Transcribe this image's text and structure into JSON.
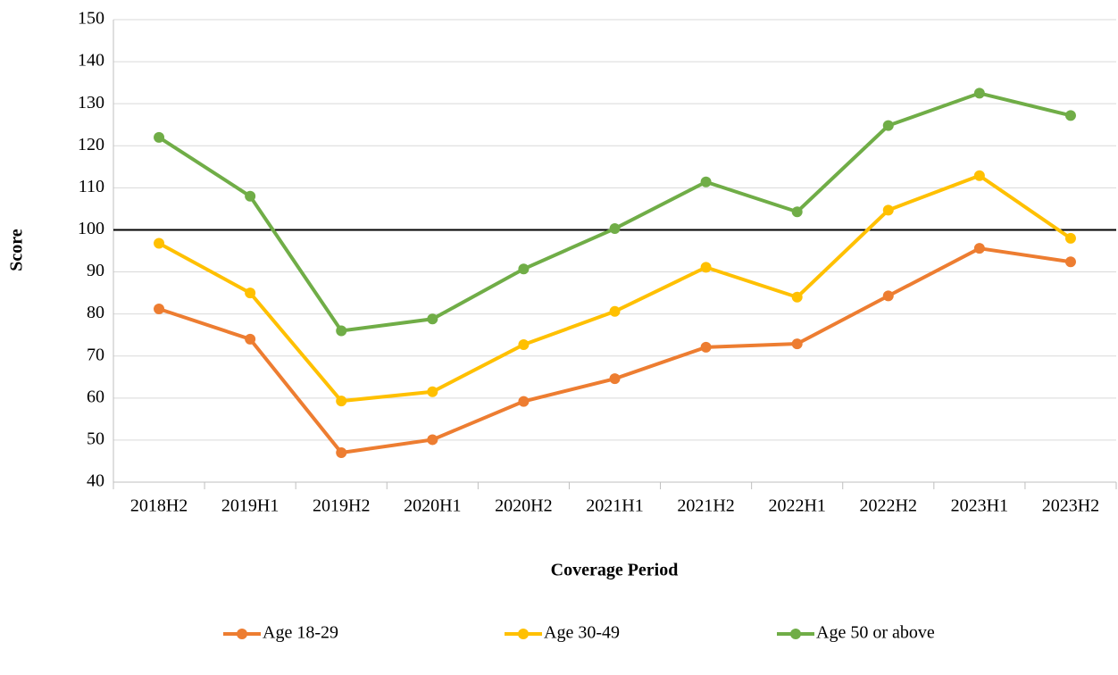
{
  "chart_data": {
    "type": "line",
    "x_label": "Coverage Period",
    "y_label": "Score",
    "categories": [
      "2018H2",
      "2019H1",
      "2019H2",
      "2020H1",
      "2020H2",
      "2021H1",
      "2021H2",
      "2022H1",
      "2022H2",
      "2023H1",
      "2023H2"
    ],
    "series": [
      {
        "name": "Age 18-29",
        "color": "#ed7d31",
        "values": [
          81.2,
          74,
          47,
          50.1,
          59.2,
          64.6,
          72.1,
          72.9,
          84.3,
          95.6,
          92.4
        ]
      },
      {
        "name": "Age 30-49",
        "color": "#ffc000",
        "values": [
          96.8,
          85,
          59.3,
          61.5,
          72.7,
          80.6,
          91.1,
          84,
          104.7,
          112.9,
          98
        ]
      },
      {
        "name": "Age 50 or above",
        "color": "#70ad47",
        "values": [
          122,
          108,
          76,
          78.8,
          90.7,
          100.3,
          111.4,
          104.3,
          124.8,
          132.5,
          127.2
        ]
      }
    ],
    "ylim": [
      40,
      150
    ],
    "yticks": [
      40,
      50,
      60,
      70,
      80,
      90,
      100,
      110,
      120,
      130,
      140,
      150
    ],
    "grid": true,
    "reference_line": 100,
    "legend": "bottom"
  }
}
